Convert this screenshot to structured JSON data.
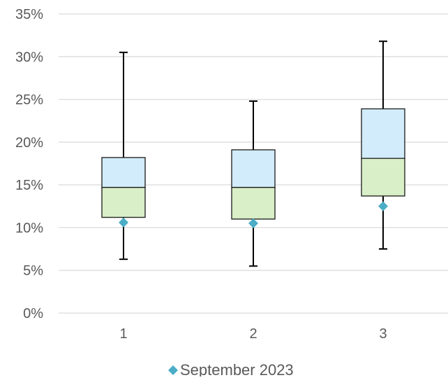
{
  "chart_data": {
    "type": "boxplot",
    "categories": [
      "1",
      "2",
      "3"
    ],
    "ylim": [
      0,
      0.35
    ],
    "yticks": [
      0,
      0.05,
      0.1,
      0.15,
      0.2,
      0.25,
      0.3,
      0.35
    ],
    "ytick_labels": [
      "0%",
      "5%",
      "10%",
      "15%",
      "20%",
      "25%",
      "30%",
      "35%"
    ],
    "grid": true,
    "legend_position": "bottom",
    "boxes": [
      {
        "category": "1",
        "min": 0.063,
        "q1": 0.112,
        "median": 0.147,
        "q3": 0.182,
        "max": 0.305
      },
      {
        "category": "2",
        "min": 0.055,
        "q1": 0.11,
        "median": 0.147,
        "q3": 0.191,
        "max": 0.248
      },
      {
        "category": "3",
        "min": 0.075,
        "q1": 0.137,
        "median": 0.181,
        "q3": 0.239,
        "max": 0.318
      }
    ],
    "series": [
      {
        "name": "September 2023",
        "marker": "diamond",
        "values": [
          0.106,
          0.105,
          0.125
        ]
      }
    ],
    "colors": {
      "lower_box": "#d9efc7",
      "upper_box": "#d2ecfb",
      "box_edge": "#1a1a1a",
      "whisker": "#000000",
      "marker": "#4badc6",
      "grid": "#d9d9d9",
      "tick_text": "#595959"
    }
  }
}
